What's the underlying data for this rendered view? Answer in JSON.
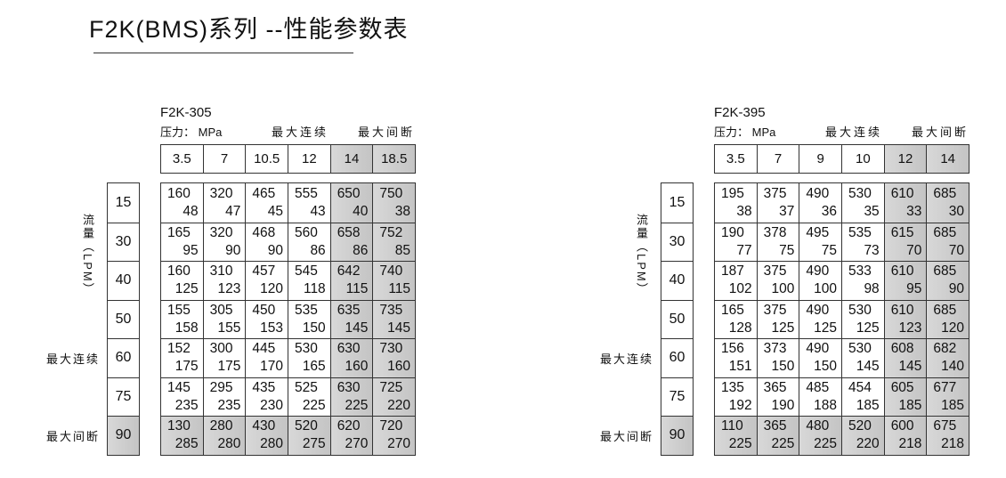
{
  "title": "F2K(BMS)系列 --性能参数表",
  "highlight_color": "#c8c8c8",
  "tables": [
    {
      "model": "F2K-305",
      "pressure_label": "压力： MPa",
      "continuous_label": "最大连续",
      "intermittent_label": "最大间断",
      "pressures": [
        "3.5",
        "7",
        "10.5",
        "12",
        "14",
        "18.5"
      ],
      "flow_axis_label": "流量（LPM）",
      "row_continuous_label": "最大连续",
      "row_intermittent_label": "最大间断",
      "flows": [
        "15",
        "30",
        "40",
        "50",
        "60",
        "75",
        "90"
      ],
      "cells": [
        [
          [
            "160",
            "48"
          ],
          [
            "320",
            "47"
          ],
          [
            "465",
            "45"
          ],
          [
            "555",
            "43"
          ],
          [
            "650",
            "40"
          ],
          [
            "750",
            "38"
          ]
        ],
        [
          [
            "165",
            "95"
          ],
          [
            "320",
            "90"
          ],
          [
            "468",
            "90"
          ],
          [
            "560",
            "86"
          ],
          [
            "658",
            "86"
          ],
          [
            "752",
            "85"
          ]
        ],
        [
          [
            "160",
            "125"
          ],
          [
            "310",
            "123"
          ],
          [
            "457",
            "120"
          ],
          [
            "545",
            "118"
          ],
          [
            "642",
            "115"
          ],
          [
            "740",
            "115"
          ]
        ],
        [
          [
            "155",
            "158"
          ],
          [
            "305",
            "155"
          ],
          [
            "450",
            "153"
          ],
          [
            "535",
            "150"
          ],
          [
            "635",
            "145"
          ],
          [
            "735",
            "145"
          ]
        ],
        [
          [
            "152",
            "175"
          ],
          [
            "300",
            "175"
          ],
          [
            "445",
            "170"
          ],
          [
            "530",
            "165"
          ],
          [
            "630",
            "160"
          ],
          [
            "730",
            "160"
          ]
        ],
        [
          [
            "145",
            "235"
          ],
          [
            "295",
            "235"
          ],
          [
            "435",
            "230"
          ],
          [
            "525",
            "225"
          ],
          [
            "630",
            "225"
          ],
          [
            "725",
            "220"
          ]
        ],
        [
          [
            "130",
            "285"
          ],
          [
            "280",
            "280"
          ],
          [
            "430",
            "280"
          ],
          [
            "520",
            "275"
          ],
          [
            "620",
            "270"
          ],
          [
            "720",
            "270"
          ]
        ]
      ]
    },
    {
      "model": "F2K-395",
      "pressure_label": "压力： MPa",
      "continuous_label": "最大连续",
      "intermittent_label": "最大间断",
      "pressures": [
        "3.5",
        "7",
        "9",
        "10",
        "12",
        "14"
      ],
      "flow_axis_label": "流量（LPM）",
      "row_continuous_label": "最大连续",
      "row_intermittent_label": "最大间断",
      "flows": [
        "15",
        "30",
        "40",
        "50",
        "60",
        "75",
        "90"
      ],
      "cells": [
        [
          [
            "195",
            "38"
          ],
          [
            "375",
            "37"
          ],
          [
            "490",
            "36"
          ],
          [
            "530",
            "35"
          ],
          [
            "610",
            "33"
          ],
          [
            "685",
            "30"
          ]
        ],
        [
          [
            "190",
            "77"
          ],
          [
            "378",
            "75"
          ],
          [
            "495",
            "75"
          ],
          [
            "535",
            "73"
          ],
          [
            "615",
            "70"
          ],
          [
            "685",
            "70"
          ]
        ],
        [
          [
            "187",
            "102"
          ],
          [
            "375",
            "100"
          ],
          [
            "490",
            "100"
          ],
          [
            "533",
            "98"
          ],
          [
            "610",
            "95"
          ],
          [
            "685",
            "90"
          ]
        ],
        [
          [
            "165",
            "128"
          ],
          [
            "375",
            "125"
          ],
          [
            "490",
            "125"
          ],
          [
            "530",
            "125"
          ],
          [
            "610",
            "123"
          ],
          [
            "685",
            "120"
          ]
        ],
        [
          [
            "156",
            "151"
          ],
          [
            "373",
            "150"
          ],
          [
            "490",
            "150"
          ],
          [
            "530",
            "145"
          ],
          [
            "608",
            "145"
          ],
          [
            "682",
            "140"
          ]
        ],
        [
          [
            "135",
            "192"
          ],
          [
            "365",
            "190"
          ],
          [
            "485",
            "188"
          ],
          [
            "454",
            "185"
          ],
          [
            "605",
            "185"
          ],
          [
            "677",
            "185"
          ]
        ],
        [
          [
            "110",
            "225"
          ],
          [
            "365",
            "225"
          ],
          [
            "480",
            "225"
          ],
          [
            "520",
            "220"
          ],
          [
            "600",
            "218"
          ],
          [
            "675",
            "218"
          ]
        ]
      ]
    }
  ]
}
